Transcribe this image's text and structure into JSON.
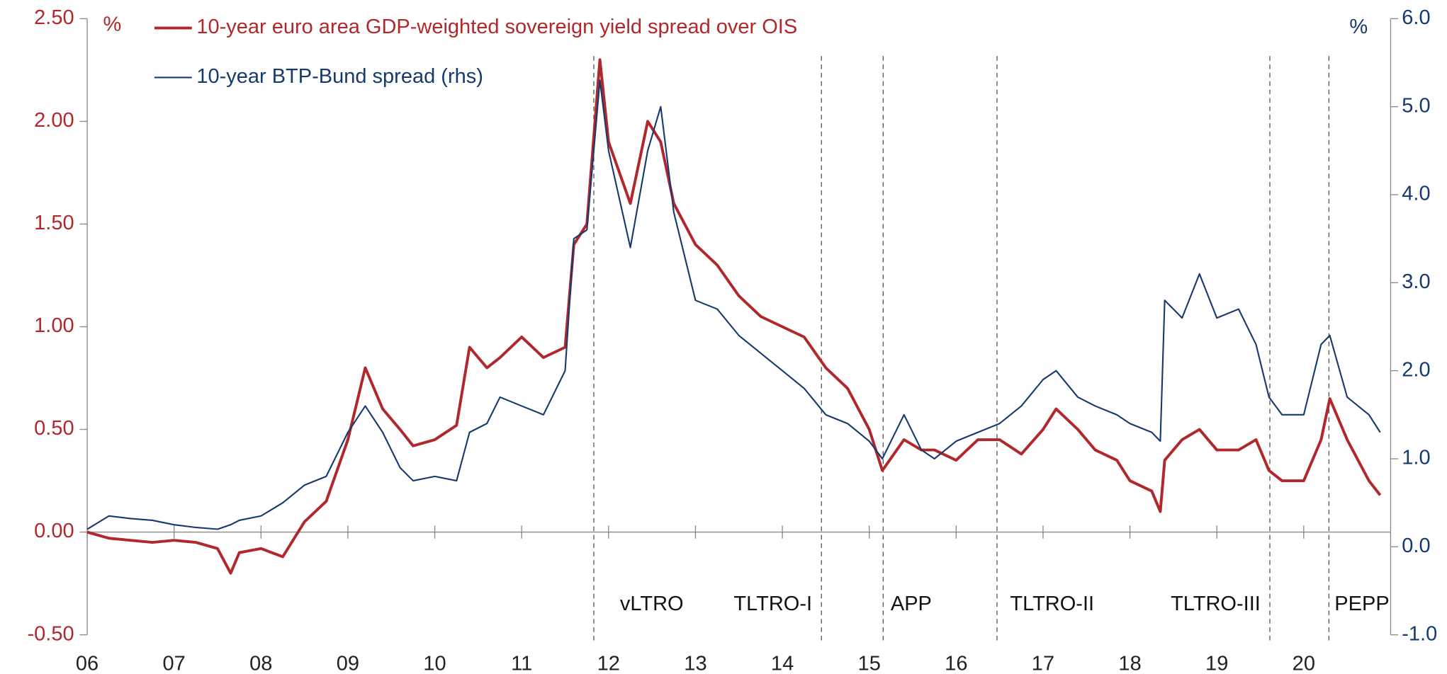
{
  "chart_data": {
    "type": "line",
    "x": [
      2006.0,
      2006.25,
      2006.5,
      2006.75,
      2007.0,
      2007.25,
      2007.5,
      2007.65,
      2007.75,
      2008.0,
      2008.25,
      2008.5,
      2008.75,
      2009.0,
      2009.2,
      2009.4,
      2009.6,
      2009.75,
      2010.0,
      2010.25,
      2010.4,
      2010.6,
      2010.75,
      2011.0,
      2011.25,
      2011.5,
      2011.6,
      2011.75,
      2011.9,
      2012.0,
      2012.25,
      2012.45,
      2012.6,
      2012.75,
      2013.0,
      2013.25,
      2013.5,
      2013.75,
      2014.0,
      2014.25,
      2014.5,
      2014.75,
      2015.0,
      2015.15,
      2015.4,
      2015.6,
      2015.75,
      2016.0,
      2016.25,
      2016.5,
      2016.75,
      2017.0,
      2017.15,
      2017.4,
      2017.6,
      2017.85,
      2018.0,
      2018.25,
      2018.35,
      2018.4,
      2018.6,
      2018.8,
      2019.0,
      2019.25,
      2019.45,
      2019.6,
      2019.75,
      2020.0,
      2020.2,
      2020.3,
      2020.5,
      2020.75,
      2020.88
    ],
    "series": [
      {
        "name": "10-year euro area GDP-weighted sovereign yield spread over OIS",
        "color": "#b0282c",
        "axis": "y",
        "values": [
          0.0,
          -0.03,
          -0.04,
          -0.05,
          -0.04,
          -0.05,
          -0.08,
          -0.2,
          -0.1,
          -0.08,
          -0.12,
          0.05,
          0.15,
          0.45,
          0.8,
          0.6,
          0.5,
          0.42,
          0.45,
          0.52,
          0.9,
          0.8,
          0.85,
          0.95,
          0.85,
          0.9,
          1.4,
          1.5,
          2.3,
          1.9,
          1.6,
          2.0,
          1.9,
          1.6,
          1.4,
          1.3,
          1.15,
          1.05,
          1.0,
          0.95,
          0.8,
          0.7,
          0.5,
          0.3,
          0.45,
          0.4,
          0.4,
          0.35,
          0.45,
          0.45,
          0.38,
          0.5,
          0.6,
          0.5,
          0.4,
          0.35,
          0.25,
          0.2,
          0.1,
          0.35,
          0.45,
          0.5,
          0.4,
          0.4,
          0.45,
          0.3,
          0.25,
          0.25,
          0.45,
          0.65,
          0.45,
          0.25,
          0.18
        ]
      },
      {
        "name": "10-year BTP-Bund spread (rhs)",
        "color": "#163a6e",
        "axis": "y2",
        "values": [
          0.2,
          0.35,
          0.32,
          0.3,
          0.25,
          0.22,
          0.2,
          0.25,
          0.3,
          0.35,
          0.5,
          0.7,
          0.8,
          1.3,
          1.6,
          1.3,
          0.9,
          0.75,
          0.8,
          0.75,
          1.3,
          1.4,
          1.7,
          1.6,
          1.5,
          2.0,
          3.5,
          3.6,
          5.3,
          4.5,
          3.4,
          4.5,
          5.0,
          3.8,
          2.8,
          2.7,
          2.4,
          2.2,
          2.0,
          1.8,
          1.5,
          1.4,
          1.2,
          1.0,
          1.5,
          1.1,
          1.0,
          1.2,
          1.3,
          1.4,
          1.6,
          1.9,
          2.0,
          1.7,
          1.6,
          1.5,
          1.4,
          1.3,
          1.2,
          2.8,
          2.6,
          3.1,
          2.6,
          2.7,
          2.3,
          1.7,
          1.5,
          1.5,
          2.3,
          2.4,
          1.7,
          1.5,
          1.3
        ]
      }
    ],
    "xlim": [
      2006,
      2021
    ],
    "xticks": [
      {
        "value": 2006,
        "label": "06"
      },
      {
        "value": 2007,
        "label": "07"
      },
      {
        "value": 2008,
        "label": "08"
      },
      {
        "value": 2009,
        "label": "09"
      },
      {
        "value": 2010,
        "label": "10"
      },
      {
        "value": 2011,
        "label": "11"
      },
      {
        "value": 2012,
        "label": "12"
      },
      {
        "value": 2013,
        "label": "13"
      },
      {
        "value": 2014,
        "label": "14"
      },
      {
        "value": 2015,
        "label": "15"
      },
      {
        "value": 2016,
        "label": "16"
      },
      {
        "value": 2017,
        "label": "17"
      },
      {
        "value": 2018,
        "label": "18"
      },
      {
        "value": 2019,
        "label": "19"
      },
      {
        "value": 2020,
        "label": "20"
      }
    ],
    "ylim": [
      -0.5,
      2.5
    ],
    "yticks": [
      {
        "value": -0.5,
        "label": "-0.50"
      },
      {
        "value": 0,
        "label": "0.00"
      },
      {
        "value": 0.5,
        "label": "0.50"
      },
      {
        "value": 1,
        "label": "1.00"
      },
      {
        "value": 1.5,
        "label": "1.50"
      },
      {
        "value": 2,
        "label": "2.00"
      },
      {
        "value": 2.5,
        "label": "2.50"
      }
    ],
    "y2lim": [
      -1,
      6
    ],
    "y2ticks": [
      {
        "value": -1,
        "label": "-1.0"
      },
      {
        "value": 0,
        "label": "0.0"
      },
      {
        "value": 1,
        "label": "1.0"
      },
      {
        "value": 2,
        "label": "2.0"
      },
      {
        "value": 3,
        "label": "3.0"
      },
      {
        "value": 4,
        "label": "4.0"
      },
      {
        "value": 5,
        "label": "5.0"
      },
      {
        "value": 6,
        "label": "6.0"
      }
    ],
    "y_unit": "%",
    "y2_unit": "%",
    "annotations": [
      {
        "x": 2011.83,
        "label": "vLTRO"
      },
      {
        "x": 2014.45,
        "label": "TLTRO-I"
      },
      {
        "x": 2015.16,
        "label": "APP"
      },
      {
        "x": 2016.47,
        "label": "TLTRO-II"
      },
      {
        "x": 2019.61,
        "label": "TLTRO-III"
      },
      {
        "x": 2020.29,
        "label": "PEPP"
      }
    ]
  }
}
